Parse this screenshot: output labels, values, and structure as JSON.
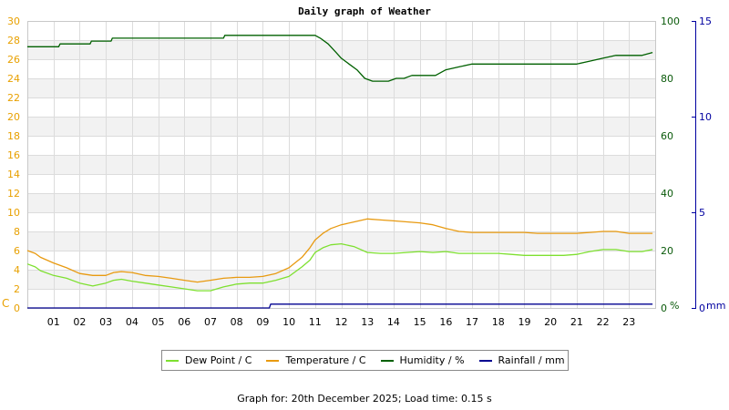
{
  "chart_data": {
    "type": "line",
    "title": "Daily graph of Weather",
    "x_tick_labels": [
      "01",
      "02",
      "03",
      "04",
      "05",
      "06",
      "07",
      "08",
      "09",
      "10",
      "11",
      "12",
      "13",
      "14",
      "15",
      "16",
      "17",
      "18",
      "19",
      "20",
      "21",
      "22",
      "23"
    ],
    "x_range_hours": [
      0,
      24
    ],
    "axes": {
      "left": {
        "unit_label": "C",
        "min": 0,
        "max": 30,
        "ticks": [
          0,
          2,
          4,
          6,
          8,
          10,
          12,
          14,
          16,
          18,
          20,
          22,
          24,
          26,
          28,
          30
        ],
        "color": "#e8a000"
      },
      "right_humidity": {
        "unit_label": "%",
        "min": 0,
        "max": 100,
        "ticks": [
          0,
          20,
          40,
          60,
          80,
          100
        ],
        "color": "#0a5a0a"
      },
      "right_rain": {
        "unit_label": "mm",
        "min": 0,
        "max": 15,
        "ticks": [
          0,
          5,
          10,
          15
        ],
        "color": "#0000a0"
      }
    },
    "grid": true,
    "legend_position": "bottom",
    "series": [
      {
        "name": "Dew Point / C",
        "axis": "left",
        "color": "#7ee030",
        "x": [
          0,
          0.3,
          0.5,
          1,
          1.5,
          2,
          2.5,
          3,
          3.3,
          3.6,
          4,
          4.5,
          5,
          5.5,
          6,
          6.5,
          7,
          7.5,
          8,
          8.5,
          9,
          9.5,
          10,
          10.5,
          10.8,
          11,
          11.3,
          11.6,
          12,
          12.5,
          13,
          13.5,
          14,
          14.5,
          15,
          15.5,
          16,
          16.5,
          17,
          17.5,
          18,
          18.5,
          19,
          19.5,
          20,
          20.5,
          21,
          21.5,
          22,
          22.5,
          23,
          23.5,
          23.9
        ],
        "values": [
          4.6,
          4.3,
          3.9,
          3.4,
          3.1,
          2.6,
          2.3,
          2.6,
          2.9,
          3.0,
          2.8,
          2.6,
          2.4,
          2.2,
          2.0,
          1.8,
          1.8,
          2.2,
          2.5,
          2.6,
          2.6,
          2.9,
          3.3,
          4.3,
          5.0,
          5.8,
          6.3,
          6.6,
          6.7,
          6.4,
          5.8,
          5.7,
          5.7,
          5.8,
          5.9,
          5.8,
          5.9,
          5.7,
          5.7,
          5.7,
          5.7,
          5.6,
          5.5,
          5.5,
          5.5,
          5.5,
          5.6,
          5.9,
          6.1,
          6.1,
          5.9,
          5.9,
          6.1
        ]
      },
      {
        "name": "Temperature / C",
        "axis": "left",
        "color": "#e89a10",
        "x": [
          0,
          0.3,
          0.5,
          1,
          1.5,
          2,
          2.5,
          3,
          3.3,
          3.6,
          4,
          4.5,
          5,
          5.5,
          6,
          6.5,
          7,
          7.5,
          8,
          8.5,
          9,
          9.5,
          10,
          10.5,
          10.8,
          11,
          11.3,
          11.6,
          12,
          12.5,
          13,
          13.5,
          14,
          14.5,
          15,
          15.5,
          16,
          16.5,
          17,
          17.5,
          18,
          18.5,
          19,
          19.5,
          20,
          20.5,
          21,
          21.5,
          22,
          22.5,
          23,
          23.5,
          23.9
        ],
        "values": [
          6.0,
          5.7,
          5.3,
          4.7,
          4.2,
          3.6,
          3.4,
          3.4,
          3.7,
          3.8,
          3.7,
          3.4,
          3.3,
          3.1,
          2.9,
          2.7,
          2.9,
          3.1,
          3.2,
          3.2,
          3.3,
          3.6,
          4.2,
          5.3,
          6.3,
          7.1,
          7.8,
          8.3,
          8.7,
          9.0,
          9.3,
          9.2,
          9.1,
          9.0,
          8.9,
          8.7,
          8.3,
          8.0,
          7.9,
          7.9,
          7.9,
          7.9,
          7.9,
          7.8,
          7.8,
          7.8,
          7.8,
          7.9,
          8.0,
          8.0,
          7.8,
          7.8,
          7.8
        ]
      },
      {
        "name": "Humidity / %",
        "axis": "right_humidity",
        "color": "#006000",
        "x": [
          0,
          0.35,
          1.2,
          1.25,
          2.4,
          2.45,
          3.2,
          3.25,
          4.0,
          4.05,
          5.0,
          6.0,
          7.0,
          7.5,
          7.55,
          8.0,
          9.0,
          10.0,
          11.0,
          11.2,
          11.5,
          11.8,
          12.0,
          12.3,
          12.6,
          12.9,
          13.2,
          13.5,
          13.8,
          14.1,
          14.4,
          14.7,
          15.0,
          15.3,
          15.6,
          16.0,
          16.5,
          17.0,
          17.5,
          18.0,
          18.5,
          19.0,
          19.5,
          20.0,
          20.5,
          21.0,
          21.5,
          22.0,
          22.5,
          23.0,
          23.5,
          23.9
        ],
        "values": [
          91,
          91,
          91,
          92,
          92,
          93,
          93,
          94,
          94,
          94,
          94,
          94,
          94,
          94,
          95,
          95,
          95,
          95,
          95,
          94,
          92,
          89,
          87,
          85,
          83,
          80,
          79,
          79,
          79,
          80,
          80,
          81,
          81,
          81,
          81,
          83,
          84,
          85,
          85,
          85,
          85,
          85,
          85,
          85,
          85,
          85,
          86,
          87,
          88,
          88,
          88,
          89
        ]
      },
      {
        "name": "Rainfall / mm",
        "axis": "right_rain",
        "color": "#000090",
        "x": [
          0,
          9.25,
          9.3,
          23.9
        ],
        "values": [
          0,
          0,
          0.2,
          0.2
        ]
      }
    ]
  },
  "footer": {
    "text": "Graph for: 20th December 2025; Load time: 0.15 s"
  }
}
